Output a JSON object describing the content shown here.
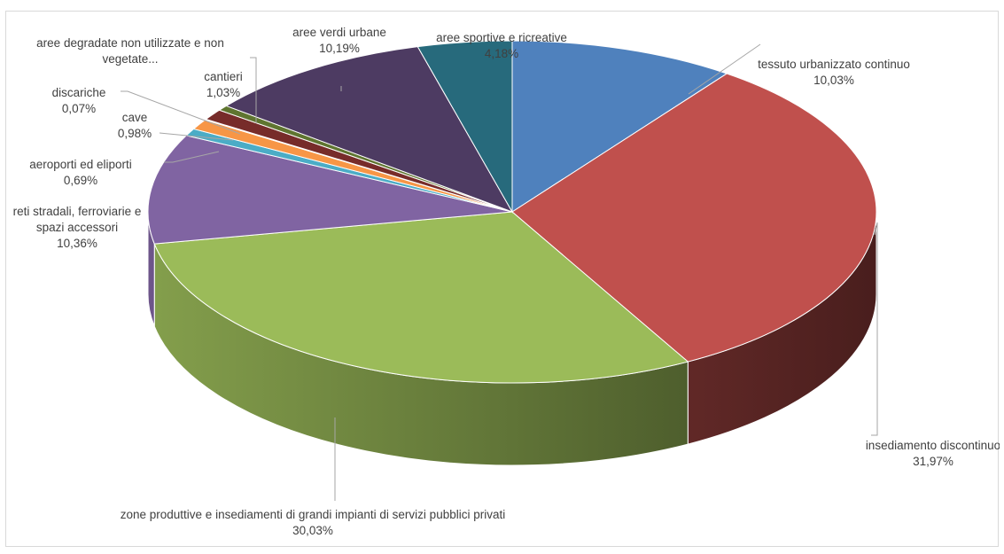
{
  "chart_data": {
    "type": "pie",
    "style": "3d-pie",
    "title": "",
    "slices": [
      {
        "name": "tessuto urbanizzato continuo",
        "name_lines": [
          "tessuto urbanizzato continuo"
        ],
        "value": 10.03,
        "label": "10,03%",
        "color": "#4f81bd"
      },
      {
        "name": "insediamento discontinuo",
        "name_lines": [
          "insediamento discontinuo"
        ],
        "value": 31.97,
        "label": "31,97%",
        "color": "#c0504d"
      },
      {
        "name": "zone produttive e insediamenti di grandi impianti di servizi pubblici privati",
        "name_lines": [
          "zone produttive e insediamenti di grandi impianti di servizi pubblici privati"
        ],
        "value": 30.03,
        "label": "30,03%",
        "color": "#9bbb59"
      },
      {
        "name": "reti stradali, ferroviarie e spazi accessori",
        "name_lines": [
          "reti stradali, ferroviarie e",
          "spazi accessori"
        ],
        "value": 10.36,
        "label": "10,36%",
        "color": "#8064a2"
      },
      {
        "name": "aeroporti ed eliporti",
        "name_lines": [
          "aeroporti ed eliporti"
        ],
        "value": 0.69,
        "label": "0,69%",
        "color": "#4bacc6"
      },
      {
        "name": "cave",
        "name_lines": [
          "cave"
        ],
        "value": 0.98,
        "label": "0,98%",
        "color": "#f79646"
      },
      {
        "name": "discariche",
        "name_lines": [
          "discariche"
        ],
        "value": 0.07,
        "label": "0,07%",
        "color": "#2c4d75"
      },
      {
        "name": "cantieri",
        "name_lines": [
          "cantieri"
        ],
        "value": 1.03,
        "label": "1,03%",
        "color": "#772c2a"
      },
      {
        "name": "aree degradate non utilizzate e non vegetate...",
        "name_lines": [
          "aree degradate non utilizzate e non",
          "vegetate..."
        ],
        "value": 0.5,
        "label": "",
        "color": "#5f7530"
      },
      {
        "name": "aree verdi urbane",
        "name_lines": [
          "aree verdi urbane"
        ],
        "value": 10.19,
        "label": "10,19%",
        "color": "#4d3b62"
      },
      {
        "name": "aree sportive e ricreative",
        "name_lines": [
          "aree sportive e ricreative"
        ],
        "value": 4.18,
        "label": "4,18%",
        "color": "#276a7c"
      }
    ],
    "legend": "none",
    "data_labels": "outside with leader lines"
  }
}
